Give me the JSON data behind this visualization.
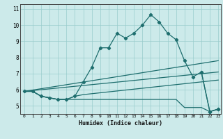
{
  "xlabel": "Humidex (Indice chaleur)",
  "xlim": [
    -0.5,
    23.3
  ],
  "ylim": [
    4.5,
    11.3
  ],
  "background_color": "#cceaea",
  "grid_color": "#99cccc",
  "line_color": "#1e6e6e",
  "line1_x": [
    0,
    1,
    2,
    3,
    4,
    5,
    6,
    7,
    8,
    9,
    10,
    11,
    12,
    13,
    14,
    15,
    16,
    17,
    18,
    19,
    20,
    21,
    22,
    23
  ],
  "line1_y": [
    5.9,
    5.9,
    5.6,
    5.5,
    5.4,
    5.4,
    5.6,
    6.5,
    7.4,
    8.6,
    8.6,
    9.5,
    9.2,
    9.5,
    10.0,
    10.65,
    10.2,
    9.5,
    9.1,
    7.8,
    6.8,
    7.1,
    4.65,
    4.8
  ],
  "line2_x": [
    0,
    1,
    2,
    3,
    4,
    5,
    6,
    7,
    8,
    9,
    10,
    11,
    12,
    13,
    14,
    15,
    16,
    17,
    18,
    19,
    20,
    21,
    22,
    23
  ],
  "line2_y": [
    5.9,
    5.9,
    5.6,
    5.5,
    5.4,
    5.4,
    5.4,
    5.4,
    5.4,
    5.4,
    5.4,
    5.4,
    5.4,
    5.4,
    5.4,
    5.4,
    5.4,
    5.4,
    5.4,
    4.9,
    4.9,
    4.9,
    4.65,
    4.8
  ],
  "line3_x": [
    0,
    1,
    2,
    3,
    4,
    5,
    6,
    7,
    23
  ],
  "line3_y": [
    5.9,
    5.9,
    5.6,
    5.5,
    5.4,
    5.4,
    5.6,
    5.7,
    6.6
  ],
  "line4_x": [
    0,
    23
  ],
  "line4_y": [
    5.9,
    7.8
  ],
  "line5_x": [
    0,
    23
  ],
  "line5_y": [
    5.9,
    7.1
  ],
  "line6_x": [
    21,
    22,
    23
  ],
  "line6_y": [
    7.1,
    4.65,
    4.8
  ],
  "yticks": [
    5,
    6,
    7,
    8,
    9,
    10,
    11
  ],
  "xticks": [
    0,
    1,
    2,
    3,
    4,
    5,
    6,
    7,
    8,
    9,
    10,
    11,
    12,
    13,
    14,
    15,
    16,
    17,
    18,
    19,
    20,
    21,
    22,
    23
  ]
}
